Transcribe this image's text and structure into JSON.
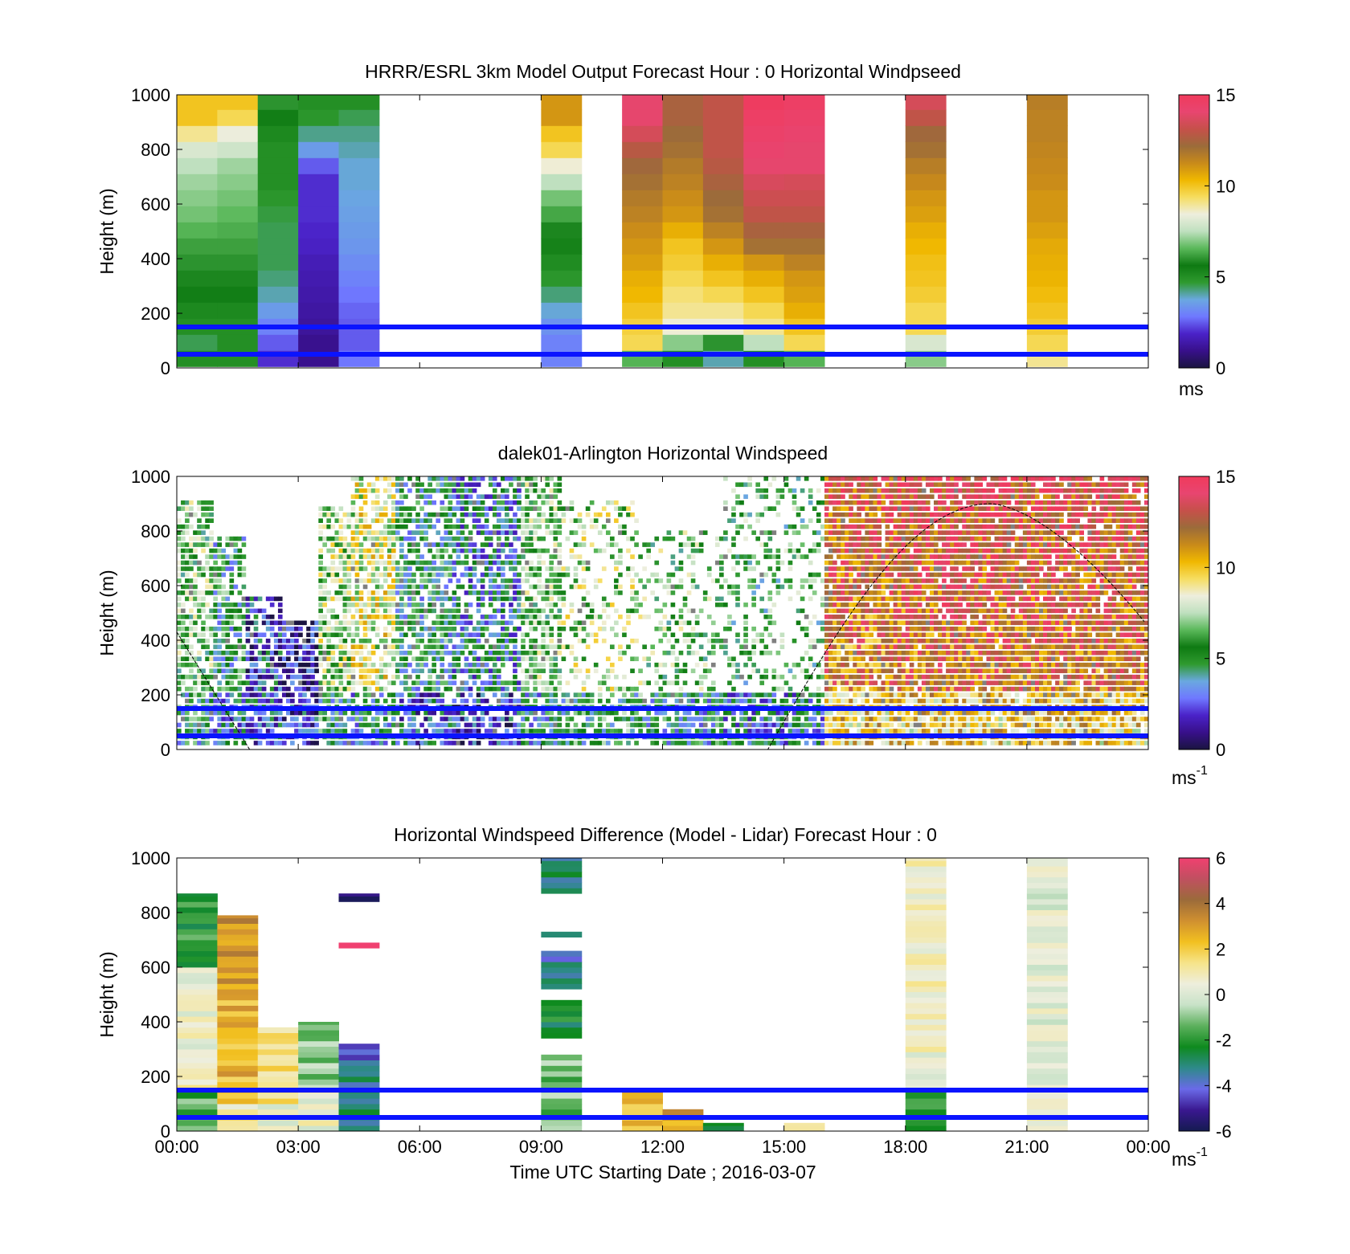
{
  "colors": {
    "ref_line": "#0a14ff",
    "speed_scale": [
      "#1a1440",
      "#38108a",
      "#4a22c8",
      "#6f78ff",
      "#6aa8e0",
      "#2f9a2f",
      "#0e7a12",
      "#5ab85a",
      "#bfe0bf",
      "#eeeedd",
      "#f6dd60",
      "#f0b800",
      "#c88a1a",
      "#9b6b3a",
      "#c6504a",
      "#e84570",
      "#f03a5c"
    ],
    "diff_scale": [
      "#141a50",
      "#3a1890",
      "#6a6ae8",
      "#2e8a8a",
      "#0e8a1e",
      "#5cb05c",
      "#c8e2c8",
      "#eeeedd",
      "#f6e48a",
      "#f2c020",
      "#d09030",
      "#9b6b3a",
      "#c05060",
      "#f04070"
    ]
  },
  "shared": {
    "xtick_labels": [
      "00:00",
      "03:00",
      "06:00",
      "09:00",
      "12:00",
      "15:00",
      "18:00",
      "21:00",
      "00:00"
    ],
    "xlabel": "Time UTC  Starting Date ; 2016-03-07"
  },
  "chart_data": [
    {
      "type": "heatmap",
      "title": "HRRR/ESRL 3km Model Output   Forecast Hour : 0 Horizontal Windpseed",
      "ylabel": "Height (m)",
      "xlabel": "",
      "xlim": [
        0,
        24
      ],
      "ylim": [
        0,
        1000
      ],
      "ytick_labels": [
        "0",
        "200",
        "400",
        "600",
        "800",
        "1000"
      ],
      "reference_lines_m": [
        50,
        150
      ],
      "colorbar": {
        "ticks": [
          "0",
          "5",
          "10",
          "15"
        ],
        "unit": "ms",
        "unit_sup": "",
        "range": [
          0,
          15
        ]
      },
      "columns": [
        {
          "hour": 0,
          "speeds": [
            5,
            4.5,
            5,
            5.2,
            5.5,
            5.8,
            6,
            6.2,
            6.5,
            6.8,
            7,
            7.2,
            7.5,
            8,
            9,
            10,
            10
          ]
        },
        {
          "hour": 1,
          "speeds": [
            5,
            5,
            5,
            5.2,
            5.5,
            5.8,
            6,
            6.2,
            6.4,
            6.6,
            6.8,
            7,
            7.2,
            7.8,
            8.4,
            9.5,
            10
          ]
        },
        {
          "hour": 2,
          "speeds": [
            2,
            2.5,
            3,
            3.5,
            4,
            4.3,
            4.5,
            4.5,
            4.5,
            4.6,
            4.8,
            5,
            5,
            5,
            5.2,
            5.5,
            6
          ]
        },
        {
          "hour": 3,
          "speeds": [
            1,
            1,
            1.2,
            1.3,
            1.4,
            1.5,
            1.6,
            1.8,
            1.9,
            2,
            2,
            2,
            2.5,
            3.5,
            4.2,
            4.8,
            5
          ]
        },
        {
          "hour": 4,
          "speeds": [
            2.8,
            2.5,
            2.5,
            2.6,
            2.8,
            3,
            3.2,
            3.4,
            3.5,
            3.6,
            3.7,
            3.8,
            3.8,
            4,
            4.2,
            4.5,
            5
          ]
        },
        {
          "hour": 9,
          "speeds": [
            3,
            3,
            3.3,
            3.8,
            4.3,
            4.8,
            5.1,
            5.4,
            5.8,
            6.3,
            6.8,
            7.5,
            8.5,
            9.5,
            10,
            11,
            11
          ]
        },
        {
          "hour": 11,
          "speeds": [
            6.5,
            9.5,
            9.7,
            10,
            10.3,
            10.5,
            10.8,
            11,
            11.2,
            11.5,
            11.7,
            12,
            12.3,
            12.8,
            13.5,
            14,
            14
          ]
        },
        {
          "hour": 12,
          "speeds": [
            5,
            7,
            8.5,
            9,
            9.2,
            9.5,
            9.8,
            10,
            10.5,
            11,
            11.2,
            11.5,
            11.7,
            12,
            12.2,
            12.5,
            12.5
          ]
        },
        {
          "hour": 13,
          "speeds": [
            4,
            6,
            8.5,
            9,
            9.5,
            10,
            10.5,
            11,
            11.5,
            12,
            12.2,
            12.5,
            12.8,
            13,
            13,
            13,
            13
          ]
        },
        {
          "hour": 14,
          "speeds": [
            5,
            7.5,
            9,
            9.5,
            10,
            10.5,
            11,
            12,
            12.5,
            13,
            13.3,
            13.6,
            14,
            14.2,
            14.4,
            14.6,
            14.8
          ]
        },
        {
          "hour": 15,
          "speeds": [
            6.5,
            9.5,
            10,
            10.5,
            10.8,
            11,
            11.5,
            12,
            12.5,
            13,
            13.3,
            13.5,
            14,
            14,
            14.2,
            14.4,
            14.6
          ]
        },
        {
          "hour": 18,
          "speeds": [
            7,
            8,
            9.5,
            9.5,
            9.8,
            10,
            10.1,
            10.3,
            10.5,
            10.8,
            11,
            11.3,
            11.6,
            12,
            12.3,
            13,
            13.5
          ]
        },
        {
          "hour": 21,
          "speeds": [
            9,
            9.5,
            9.8,
            10,
            10.2,
            10.4,
            10.5,
            10.6,
            10.8,
            11,
            11,
            11.2,
            11.3,
            11.4,
            11.5,
            11.5,
            11.6
          ]
        }
      ]
    },
    {
      "type": "heatmap",
      "title": "dalek01-Arlington  Horizontal Windspeed",
      "ylabel": "Height (m)",
      "xlabel": "",
      "xlim": [
        0,
        24
      ],
      "ylim": [
        0,
        1000
      ],
      "ytick_labels": [
        "0",
        "200",
        "400",
        "600",
        "800",
        "1000"
      ],
      "reference_lines_m": [
        50,
        150
      ],
      "colorbar": {
        "ticks": [
          "0",
          "5",
          "10",
          "15"
        ],
        "unit": "ms",
        "unit_sup": "-1",
        "range": [
          0,
          15
        ]
      },
      "segments": [
        {
          "t0": 0.0,
          "t1": 0.9,
          "top": 900,
          "mean": 6.5,
          "low_mean": 5.0
        },
        {
          "t0": 0.9,
          "t1": 1.7,
          "top": 780,
          "mean": 5.0,
          "low_mean": 4.0
        },
        {
          "t0": 1.7,
          "t1": 2.6,
          "top": 560,
          "mean": 2.5,
          "low_mean": 3.0
        },
        {
          "t0": 2.6,
          "t1": 3.5,
          "top": 460,
          "mean": 1.2,
          "low_mean": 2.0
        },
        {
          "t0": 3.5,
          "t1": 4.3,
          "top": 880,
          "mean": 7.5,
          "low_mean": 5.0
        },
        {
          "t0": 4.3,
          "t1": 5.4,
          "top": 1000,
          "mean": 8.5,
          "low_mean": 4.5
        },
        {
          "t0": 5.4,
          "t1": 6.8,
          "top": 1000,
          "mean": 5.0,
          "low_mean": 3.0
        },
        {
          "t0": 6.8,
          "t1": 8.5,
          "top": 1000,
          "mean": 4.0,
          "low_mean": 2.0
        },
        {
          "t0": 8.5,
          "t1": 9.5,
          "top": 1000,
          "mean": 6.5,
          "low_mean": 4.5
        },
        {
          "t0": 9.5,
          "t1": 11.5,
          "top": 900,
          "mean": 7.5,
          "low_mean": 5.5
        },
        {
          "t0": 11.5,
          "t1": 13.5,
          "top": 800,
          "mean": 6.5,
          "low_mean": 4.5
        },
        {
          "t0": 13.5,
          "t1": 16.0,
          "top": 1000,
          "mean": 6.0,
          "low_mean": 4.0
        },
        {
          "t0": 16.0,
          "t1": 17.6,
          "top": 1000,
          "mean": 11.0,
          "low_mean": 9.5
        },
        {
          "t0": 17.6,
          "t1": 24.0,
          "top": 1000,
          "mean": 11.5,
          "low_mean": 9.5
        }
      ],
      "curve": {
        "peak_hour": 20.1,
        "peak_height": 900,
        "start_height": 430,
        "zero_hours": [
          1.8,
          14.6
        ]
      }
    },
    {
      "type": "heatmap",
      "title": "Horizontal Windspeed Difference (Model - Lidar) Forecast Hour : 0",
      "ylabel": "Height (m)",
      "xlabel": "Time UTC  Starting Date ; 2016-03-07",
      "xlim": [
        0,
        24
      ],
      "ylim": [
        0,
        1000
      ],
      "ytick_labels": [
        "0",
        "200",
        "400",
        "600",
        "800",
        "1000"
      ],
      "reference_lines_m": [
        50,
        150
      ],
      "colorbar": {
        "ticks": [
          "-6",
          "-4",
          "-2",
          "0",
          "2",
          "4",
          "6"
        ],
        "unit": "ms",
        "unit_sup": "-1",
        "range": [
          -6,
          6
        ]
      },
      "columns": [
        {
          "hour": 0,
          "top": 870,
          "bands": [
            [
              0,
              150,
              -1.5
            ],
            [
              150,
              280,
              0.8
            ],
            [
              280,
              600,
              0.5
            ],
            [
              600,
              870,
              -2.0
            ]
          ]
        },
        {
          "hour": 1,
          "top": 790,
          "bands": [
            [
              0,
              100,
              1.0
            ],
            [
              100,
              480,
              2.5
            ],
            [
              480,
              600,
              3.0
            ],
            [
              600,
              790,
              3.2
            ]
          ]
        },
        {
          "hour": 2,
          "top": 380,
          "bands": [
            [
              0,
              100,
              0.5
            ],
            [
              100,
              380,
              1.5
            ]
          ]
        },
        {
          "hour": 3,
          "top": 400,
          "bands": [
            [
              0,
              150,
              0.5
            ],
            [
              150,
              400,
              -1.0
            ]
          ]
        },
        {
          "hour": 4,
          "top": 320,
          "bands": [
            [
              0,
              240,
              -3.0
            ],
            [
              240,
              320,
              -4.0
            ],
            [
              670,
              690,
              5.8
            ],
            [
              840,
              870,
              -5.8
            ]
          ]
        },
        {
          "hour": 9,
          "top": 1000,
          "bands": [
            [
              0,
              280,
              -1.2
            ],
            [
              340,
              480,
              -2.5
            ],
            [
              520,
              660,
              -3.5
            ],
            [
              710,
              730,
              -3.0
            ],
            [
              870,
              1000,
              -3.0
            ]
          ]
        },
        {
          "hour": 11,
          "top": 150,
          "bands": [
            [
              0,
              150,
              2.5
            ]
          ]
        },
        {
          "hour": 12,
          "top": 80,
          "bands": [
            [
              0,
              80,
              2.8
            ]
          ]
        },
        {
          "hour": 13,
          "top": 30,
          "bands": [
            [
              0,
              30,
              -2.5
            ]
          ]
        },
        {
          "hour": 15,
          "top": 30,
          "bands": [
            [
              0,
              30,
              1.5
            ]
          ]
        },
        {
          "hour": 18,
          "top": 1000,
          "bands": [
            [
              0,
              150,
              -2.0
            ],
            [
              150,
              1000,
              0.6
            ]
          ]
        },
        {
          "hour": 21,
          "top": 1000,
          "bands": [
            [
              0,
              150,
              0.8
            ],
            [
              150,
              1000,
              0.2
            ]
          ]
        }
      ]
    }
  ]
}
